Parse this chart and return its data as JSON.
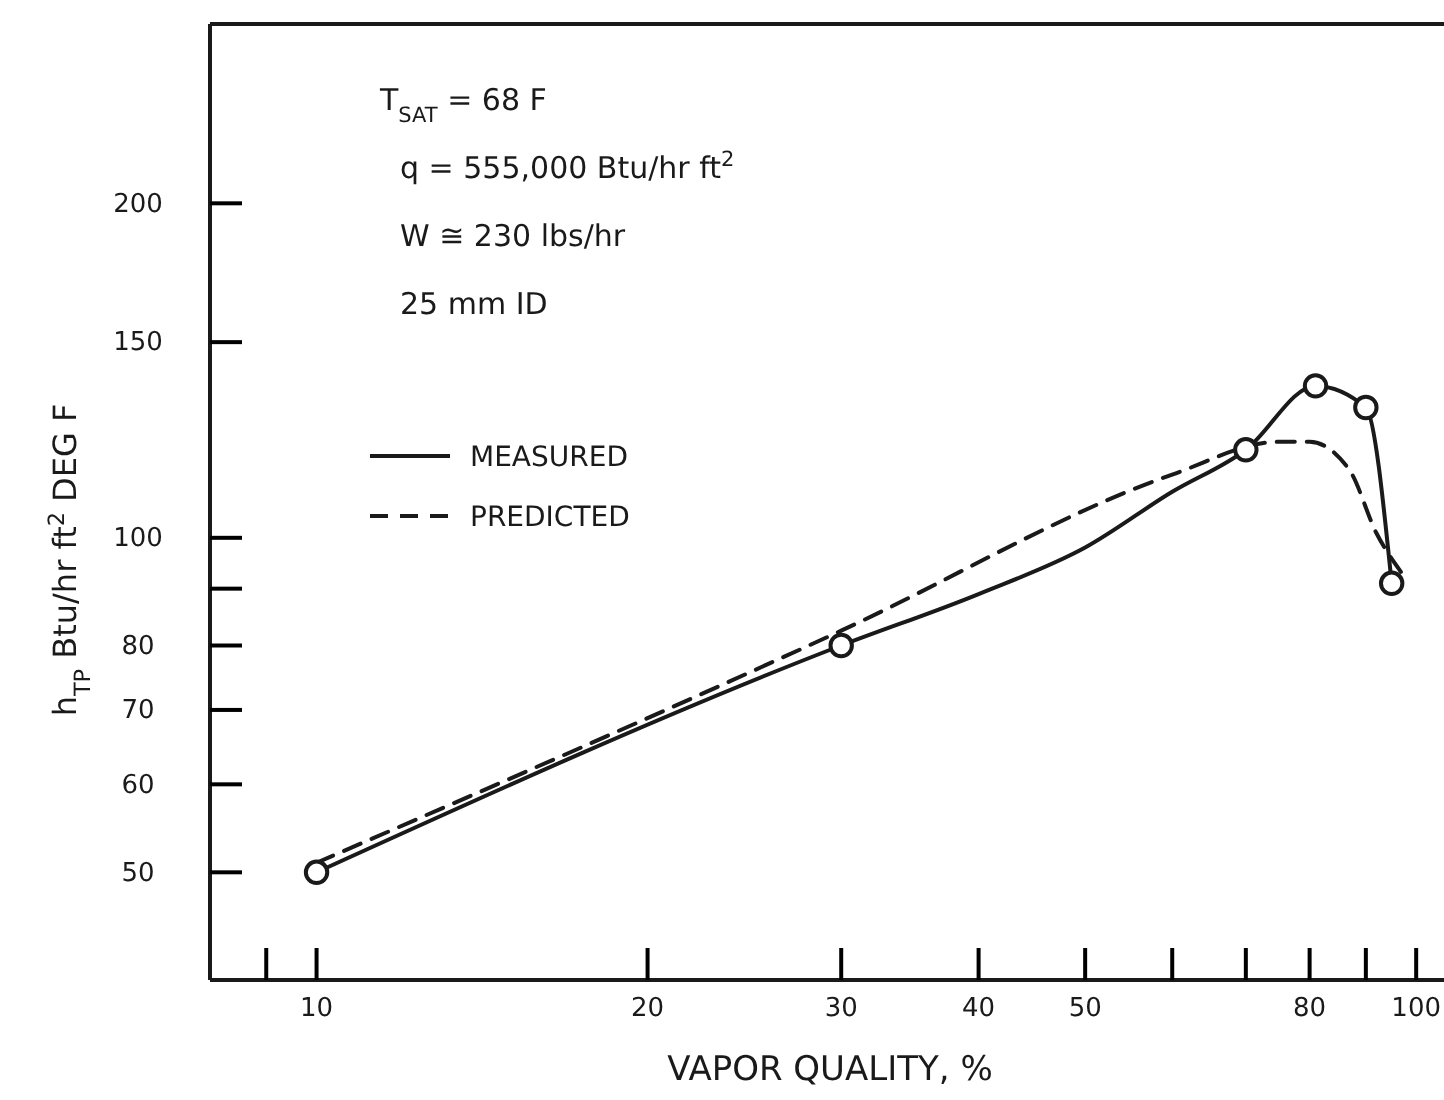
{
  "chart_data": {
    "type": "line",
    "xlabel": "VAPOR QUALITY, %",
    "ylabel": "h$_{TP}$  Btu/hr ft$^{2}$ DEG F",
    "annotations": [
      "T$_{SAT}$ = 68 F",
      "q = 555,000 Btu/hr ft$^{2}$",
      "W ≅ 230 lbs/hr",
      "25 mm ID"
    ],
    "log": "xy",
    "xlim": [
      8,
      106
    ],
    "ylim": [
      40,
      290
    ],
    "xticks": [
      {
        "value": 9,
        "label": null
      },
      10,
      20,
      30,
      40,
      50,
      {
        "value": 60,
        "label": null
      },
      {
        "value": 70,
        "label": null
      },
      80,
      {
        "value": 90,
        "label": null
      },
      100
    ],
    "yticks": [
      50,
      60,
      70,
      80,
      {
        "value": 90,
        "label": null
      },
      100,
      150,
      200
    ],
    "grid": false,
    "legend": "top left",
    "series": [
      {
        "name": "MEASURED",
        "line_style": "solid",
        "color": "#1a1a1a",
        "x": [
          10,
          30,
          40,
          50,
          60,
          70,
          81,
          90,
          95
        ],
        "values": [
          50,
          80,
          89,
          98,
          110,
          120,
          137,
          131,
          91
        ]
      },
      {
        "name": "PREDICTED",
        "line_style": "dashed",
        "color": "#1a1a1a",
        "x": [
          10,
          30,
          60,
          75,
          80,
          87,
          92,
          97
        ],
        "values": [
          51,
          82.5,
          114,
          122,
          122,
          115,
          101,
          93
        ]
      },
      {
        "type": "scatter",
        "marker": "circle",
        "color": "#1a1a1a",
        "x": [
          10,
          30,
          70,
          81,
          90,
          95
        ],
        "values": [
          50,
          80,
          120,
          137,
          131,
          91
        ]
      }
    ]
  }
}
